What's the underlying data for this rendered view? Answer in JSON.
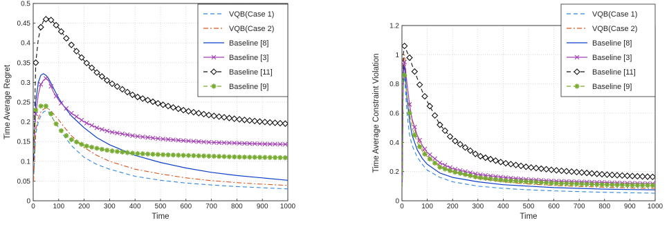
{
  "chart_data": [
    {
      "type": "line",
      "xlabel": "Time",
      "ylabel": "Time Average Regret",
      "xlim": [
        0,
        1000
      ],
      "ylim": [
        0,
        0.5
      ],
      "xticks": [
        "0",
        "100",
        "200",
        "300",
        "400",
        "500",
        "600",
        "700",
        "800",
        "900",
        "1000"
      ],
      "yticks": [
        "0",
        "0.05",
        "0.1",
        "0.15",
        "0.2",
        "0.25",
        "0.3",
        "0.35",
        "0.4",
        "0.45",
        "0.5"
      ],
      "grid": true,
      "legend_position": "top-right",
      "series": [
        {
          "name": "VQB(Case 1)",
          "color": "#2e86de",
          "style": "dashed",
          "marker": "none",
          "x": [
            1,
            10,
            20,
            30,
            40,
            50,
            60,
            70,
            80,
            100,
            120,
            150,
            200,
            250,
            300,
            400,
            500,
            600,
            700,
            800,
            900,
            1000
          ],
          "y": [
            0.05,
            0.17,
            0.2,
            0.215,
            0.225,
            0.228,
            0.225,
            0.215,
            0.205,
            0.185,
            0.165,
            0.14,
            0.11,
            0.092,
            0.08,
            0.062,
            0.052,
            0.045,
            0.04,
            0.036,
            0.033,
            0.03
          ]
        },
        {
          "name": "VQB(Case 2)",
          "color": "#d95319",
          "style": "dashdot",
          "marker": "none",
          "x": [
            1,
            10,
            20,
            30,
            40,
            50,
            60,
            70,
            80,
            100,
            120,
            150,
            200,
            250,
            300,
            400,
            500,
            600,
            700,
            800,
            900,
            1000
          ],
          "y": [
            0.05,
            0.18,
            0.21,
            0.225,
            0.232,
            0.235,
            0.233,
            0.228,
            0.22,
            0.205,
            0.188,
            0.165,
            0.135,
            0.115,
            0.1,
            0.08,
            0.068,
            0.058,
            0.051,
            0.046,
            0.042,
            0.039
          ]
        },
        {
          "name": "Baseline [8]",
          "color": "#0b3ec9",
          "style": "solid",
          "marker": "none",
          "x": [
            1,
            10,
            20,
            30,
            40,
            50,
            60,
            70,
            80,
            100,
            120,
            150,
            200,
            250,
            300,
            400,
            500,
            600,
            700,
            800,
            900,
            1000
          ],
          "y": [
            0.1,
            0.25,
            0.3,
            0.318,
            0.322,
            0.318,
            0.31,
            0.298,
            0.285,
            0.26,
            0.24,
            0.215,
            0.185,
            0.16,
            0.142,
            0.115,
            0.097,
            0.083,
            0.072,
            0.064,
            0.058,
            0.052
          ]
        },
        {
          "name": "Baseline [3]",
          "color": "#a23fb3",
          "style": "solid",
          "marker": "x",
          "x": [
            1,
            10,
            20,
            30,
            40,
            50,
            60,
            70,
            80,
            100,
            120,
            150,
            200,
            250,
            300,
            400,
            500,
            600,
            700,
            800,
            900,
            1000
          ],
          "y": [
            0.12,
            0.22,
            0.27,
            0.295,
            0.305,
            0.31,
            0.305,
            0.29,
            0.275,
            0.255,
            0.24,
            0.222,
            0.2,
            0.185,
            0.175,
            0.164,
            0.157,
            0.152,
            0.148,
            0.146,
            0.144,
            0.143
          ]
        },
        {
          "name": "Baseline [11]",
          "color": "#111111",
          "style": "dashed",
          "marker": "diamond",
          "x": [
            1,
            10,
            20,
            30,
            40,
            50,
            60,
            70,
            80,
            100,
            120,
            150,
            200,
            250,
            300,
            400,
            500,
            600,
            700,
            800,
            900,
            1000
          ],
          "y": [
            0.1,
            0.35,
            0.41,
            0.44,
            0.455,
            0.46,
            0.462,
            0.458,
            0.452,
            0.438,
            0.42,
            0.395,
            0.355,
            0.325,
            0.3,
            0.265,
            0.245,
            0.228,
            0.216,
            0.207,
            0.2,
            0.195
          ]
        },
        {
          "name": "Baseline [9]",
          "color": "#77ac30",
          "style": "dashed",
          "marker": "asterisk",
          "x": [
            1,
            10,
            20,
            30,
            40,
            50,
            60,
            70,
            80,
            100,
            120,
            150,
            200,
            250,
            300,
            400,
            500,
            600,
            700,
            800,
            900,
            1000
          ],
          "y": [
            0.12,
            0.23,
            0.235,
            0.24,
            0.243,
            0.24,
            0.232,
            0.22,
            0.205,
            0.185,
            0.17,
            0.155,
            0.14,
            0.133,
            0.127,
            0.12,
            0.117,
            0.115,
            0.113,
            0.111,
            0.11,
            0.109
          ]
        }
      ]
    },
    {
      "type": "line",
      "xlabel": "Time",
      "ylabel": "Time Average Constraint Violation",
      "xlim": [
        0,
        1000
      ],
      "ylim": [
        0,
        1.2
      ],
      "xticks": [
        "0",
        "100",
        "200",
        "300",
        "400",
        "500",
        "600",
        "700",
        "800",
        "900",
        "1000"
      ],
      "yticks": [
        "0",
        "0.2",
        "0.4",
        "0.6",
        "0.8",
        "1",
        "1.2"
      ],
      "grid": true,
      "legend_position": "top-right",
      "series": [
        {
          "name": "VQB(Case 1)",
          "color": "#2e86de",
          "style": "dashed",
          "marker": "none",
          "x": [
            1,
            5,
            10,
            20,
            30,
            40,
            60,
            80,
            100,
            150,
            200,
            300,
            400,
            500,
            600,
            700,
            800,
            900,
            1000
          ],
          "y": [
            0.1,
            0.8,
            0.85,
            0.6,
            0.45,
            0.38,
            0.3,
            0.25,
            0.21,
            0.16,
            0.13,
            0.1,
            0.085,
            0.075,
            0.068,
            0.063,
            0.058,
            0.055,
            0.052
          ]
        },
        {
          "name": "VQB(Case 2)",
          "color": "#d95319",
          "style": "dashdot",
          "marker": "none",
          "x": [
            1,
            5,
            10,
            20,
            30,
            40,
            60,
            80,
            100,
            150,
            200,
            300,
            400,
            500,
            600,
            700,
            800,
            900,
            1000
          ],
          "y": [
            0.1,
            0.95,
            1.0,
            0.8,
            0.65,
            0.55,
            0.43,
            0.36,
            0.31,
            0.24,
            0.2,
            0.155,
            0.13,
            0.115,
            0.105,
            0.098,
            0.092,
            0.088,
            0.085
          ]
        },
        {
          "name": "Baseline [8]",
          "color": "#0b3ec9",
          "style": "solid",
          "marker": "none",
          "x": [
            1,
            5,
            10,
            20,
            30,
            40,
            60,
            80,
            100,
            150,
            200,
            300,
            400,
            500,
            600,
            700,
            800,
            900,
            1000
          ],
          "y": [
            0.1,
            0.88,
            0.92,
            0.7,
            0.55,
            0.45,
            0.35,
            0.29,
            0.25,
            0.19,
            0.16,
            0.13,
            0.11,
            0.1,
            0.09,
            0.085,
            0.08,
            0.077,
            0.075
          ]
        },
        {
          "name": "Baseline [3]",
          "color": "#a23fb3",
          "style": "solid",
          "marker": "x",
          "x": [
            1,
            5,
            10,
            20,
            30,
            40,
            60,
            80,
            100,
            150,
            200,
            300,
            400,
            500,
            600,
            700,
            800,
            900,
            1000
          ],
          "y": [
            0.1,
            0.9,
            0.95,
            0.8,
            0.66,
            0.56,
            0.45,
            0.38,
            0.33,
            0.26,
            0.22,
            0.18,
            0.16,
            0.145,
            0.135,
            0.13,
            0.125,
            0.12,
            0.117
          ]
        },
        {
          "name": "Baseline [11]",
          "color": "#111111",
          "style": "dashed",
          "marker": "diamond",
          "x": [
            1,
            5,
            10,
            20,
            30,
            40,
            60,
            80,
            100,
            150,
            200,
            300,
            400,
            500,
            600,
            700,
            800,
            900,
            1000
          ],
          "y": [
            0.1,
            1.0,
            1.06,
            1.02,
            0.98,
            0.93,
            0.84,
            0.75,
            0.68,
            0.52,
            0.42,
            0.31,
            0.26,
            0.23,
            0.21,
            0.195,
            0.18,
            0.17,
            0.163
          ]
        },
        {
          "name": "Baseline [9]",
          "color": "#77ac30",
          "style": "dashed",
          "marker": "asterisk",
          "x": [
            1,
            5,
            10,
            20,
            30,
            40,
            60,
            80,
            100,
            150,
            200,
            300,
            400,
            500,
            600,
            700,
            800,
            900,
            1000
          ],
          "y": [
            0.1,
            0.82,
            0.86,
            0.72,
            0.6,
            0.5,
            0.4,
            0.34,
            0.3,
            0.23,
            0.2,
            0.16,
            0.14,
            0.13,
            0.12,
            0.115,
            0.11,
            0.107,
            0.105
          ]
        }
      ]
    }
  ]
}
